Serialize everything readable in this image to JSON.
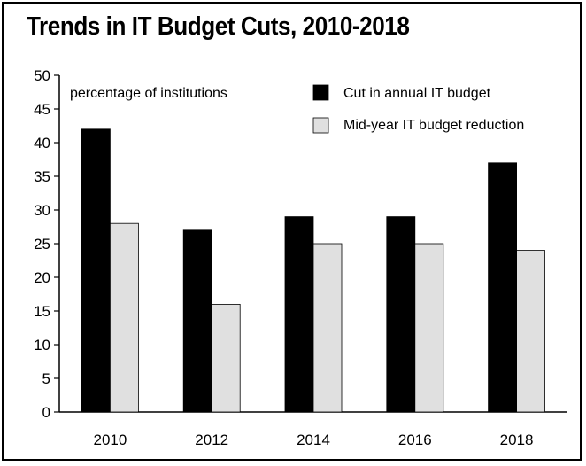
{
  "chart_data": {
    "type": "bar",
    "title": "Trends in IT Budget Cuts, 2010-2018",
    "annotation": "percentage of institutions",
    "categories": [
      "2010",
      "2012",
      "2014",
      "2016",
      "2018"
    ],
    "series": [
      {
        "name": "Cut in annual IT budget",
        "values": [
          42,
          27,
          29,
          29,
          37
        ],
        "color": "#000000"
      },
      {
        "name": "Mid-year IT budget reduction",
        "values": [
          28,
          16,
          25,
          25,
          24
        ],
        "color": "#e0e0e0"
      }
    ],
    "ylim": [
      0,
      50
    ],
    "yticks": [
      0,
      5,
      10,
      15,
      20,
      25,
      30,
      35,
      40,
      45,
      50
    ],
    "xlabel": "",
    "ylabel": "",
    "grid": false,
    "legend_position": "top-right"
  }
}
